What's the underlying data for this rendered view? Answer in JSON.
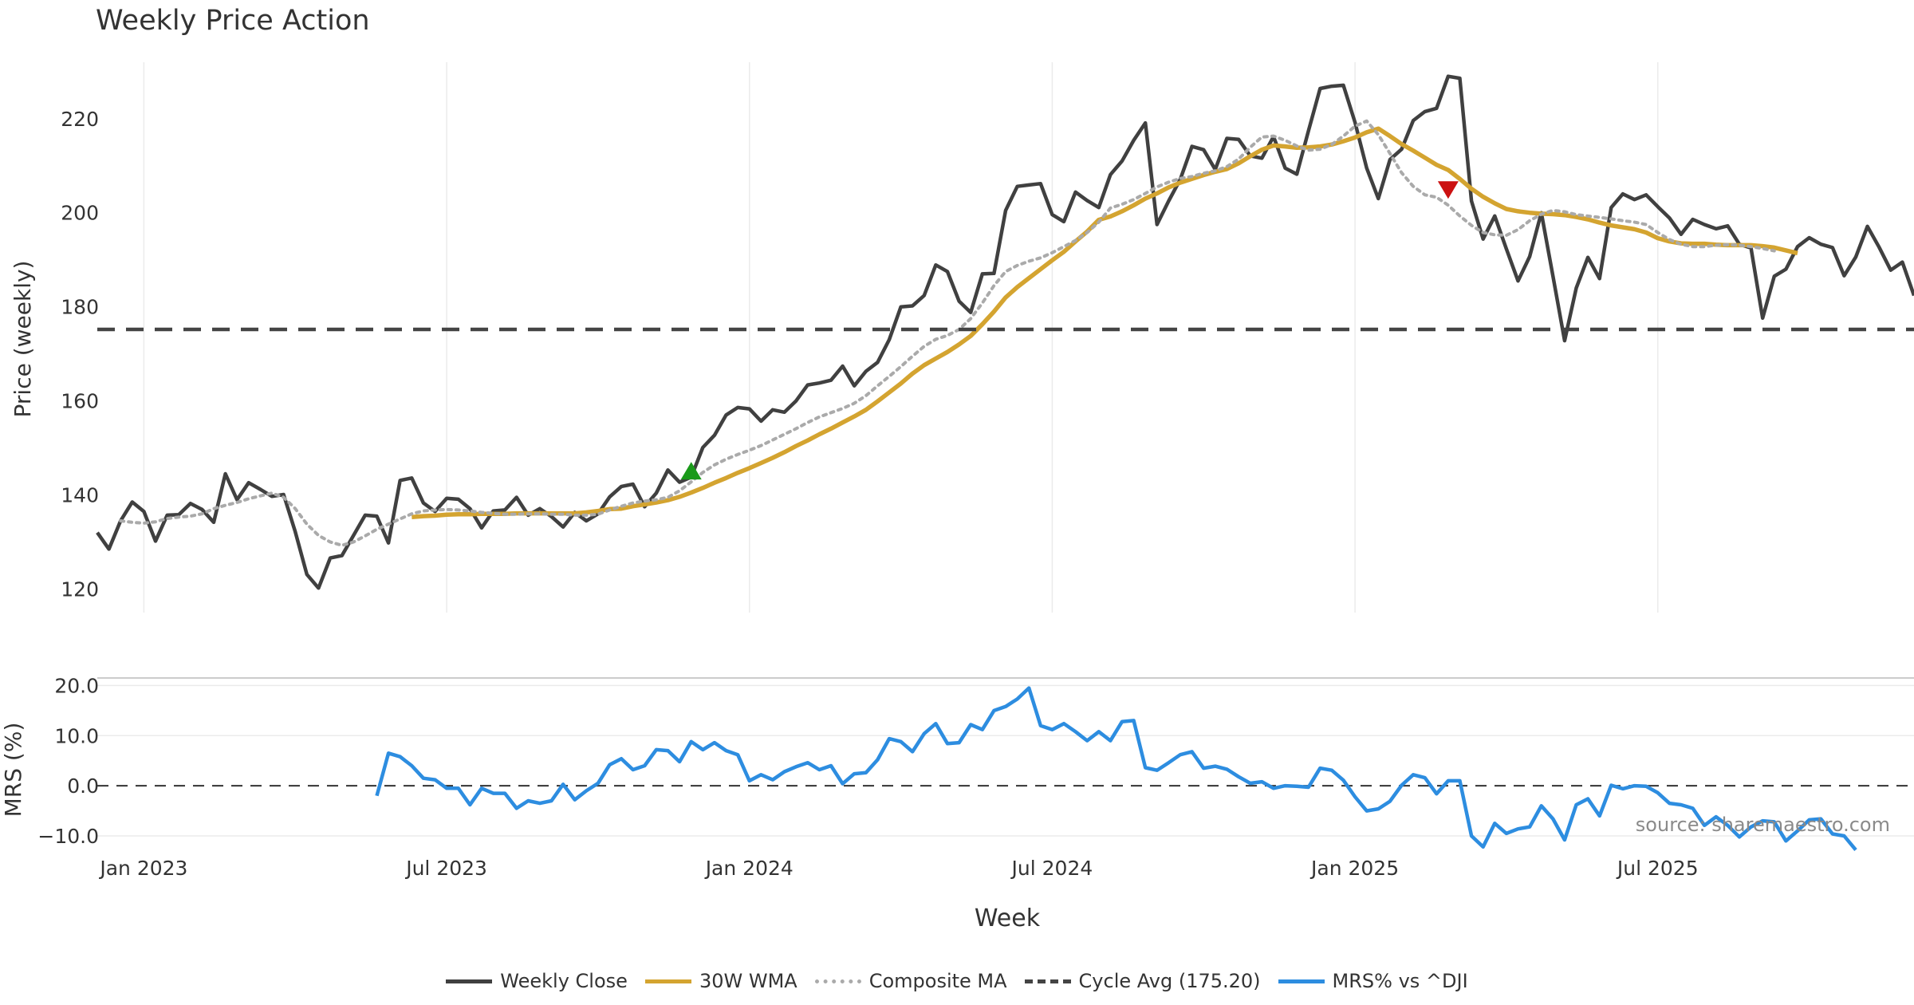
{
  "chart_data": {
    "type": "line",
    "title": "Weekly Price Action",
    "source_note": "source: sharemaestro.com",
    "x_axis": {
      "label": "Week",
      "ticks": [
        "Jan 2023",
        "Jul 2023",
        "Jan 2024",
        "Jul 2024",
        "Jan 2025",
        "Jul 2025"
      ],
      "range_weeks": [
        0,
        156
      ]
    },
    "price_panel": {
      "ylabel": "Price (weekly)",
      "ylim": [
        115,
        232
      ],
      "yticks": [
        120,
        140,
        160,
        180,
        200,
        220
      ],
      "grid": "vertical",
      "series": [
        {
          "name": "Weekly Close",
          "color": "#404040",
          "style": "solid",
          "start_week": 0,
          "values": [
            132,
            128.5,
            134.5,
            138.5,
            136.5,
            130.2,
            135.7,
            135.8,
            138.2,
            136.9,
            134.2,
            144.5,
            139,
            142.6,
            141.2,
            139.7,
            140.1,
            132.2,
            123.1,
            120.2,
            126.6,
            127.1,
            131.4,
            135.7,
            135.5,
            129.8,
            143.1,
            143.6,
            138.3,
            136.5,
            139.3,
            139.1,
            137.1,
            133,
            136.6,
            136.8,
            139.5,
            135.7,
            137.1,
            135.4,
            133.2,
            136.3,
            134.5,
            136,
            139.6,
            141.8,
            142.3,
            137.5,
            140.4,
            145.3,
            142.7,
            143.8,
            150.1,
            152.7,
            157,
            158.6,
            158.3,
            155.7,
            158.1,
            157.6,
            160,
            163.4,
            163.8,
            164.4,
            167.4,
            163.2,
            166.3,
            168.2,
            173,
            180,
            180.2,
            182.4,
            188.9,
            187.5,
            181.2,
            178.8,
            187,
            187.1,
            200.5,
            205.6,
            205.9,
            206.2,
            199.6,
            198.1,
            204.4,
            202.6,
            201.1,
            208.1,
            211,
            215.4,
            219.1,
            197.5,
            202.5,
            207.1,
            214.1,
            213.4,
            209.2,
            215.8,
            215.6,
            212.1,
            211.6,
            216.2,
            209.5,
            208.2,
            217.4,
            226.4,
            226.9,
            227.1,
            219.2,
            209.5,
            203,
            211.3,
            213.5,
            219.6,
            221.5,
            222.2,
            229,
            228.6,
            202.5,
            194.4,
            199.3,
            192.3,
            185.5,
            190.7,
            200,
            186.5,
            172.8,
            184,
            190.5,
            186,
            201.1,
            204,
            202.8,
            203.8,
            201.3,
            198.9,
            195.4,
            198.6,
            197.5,
            196.6,
            197.2,
            193.3,
            192.5,
            177.6,
            186.5,
            188,
            192.8,
            194.7,
            193.3,
            192.6,
            186.6,
            190.6,
            197.1,
            192.7,
            187.8,
            189.5,
            182.4
          ]
        },
        {
          "name": "30W WMA",
          "color": "#d4a430",
          "style": "solid",
          "start_week": 27,
          "values": [
            135.3,
            135.5,
            135.6,
            135.8,
            135.9,
            135.9,
            136,
            136,
            136,
            136.1,
            136.1,
            136.1,
            136.1,
            136.1,
            136.1,
            136.3,
            136.6,
            137,
            137.1,
            137.6,
            138,
            138.4,
            138.9,
            139.6,
            140.5,
            141.5,
            142.6,
            143.6,
            144.7,
            145.7,
            146.8,
            147.9,
            149.1,
            150.4,
            151.6,
            152.9,
            154.1,
            155.4,
            156.7,
            158.1,
            159.9,
            161.8,
            163.7,
            165.8,
            167.6,
            169,
            170.4,
            172,
            173.8,
            176.3,
            179,
            182,
            184.2,
            186.1,
            188,
            189.9,
            191.7,
            193.9,
            196,
            198.5,
            199.2,
            200.3,
            201.6,
            203,
            204.1,
            205.4,
            206.4,
            207.2,
            208,
            208.7,
            209.3,
            210.5,
            212,
            213.4,
            214.3,
            214.1,
            213.8,
            213.9,
            214.1,
            214.5,
            215.2,
            216,
            217.1,
            217.9,
            216.3,
            214.6,
            213.2,
            211.7,
            210.2,
            209.1,
            207.2,
            205.1,
            203.4,
            202,
            200.8,
            200.3,
            200,
            199.8,
            199.7,
            199.5,
            199.1,
            198.6,
            197.9,
            197.3,
            196.9,
            196.5,
            195.8,
            194.6,
            193.9,
            193.5,
            193.4,
            193.4,
            193.2,
            193.1,
            193.1,
            193.1,
            192.9,
            192.6,
            192,
            191.4
          ]
        },
        {
          "name": "Composite MA",
          "color": "#aaaaaa",
          "style": "dotted",
          "start_week": 2,
          "values": [
            134.5,
            134.2,
            134,
            134.3,
            135,
            135.3,
            135.5,
            136,
            137.1,
            137.8,
            138.4,
            139.2,
            139.8,
            140.4,
            139.5,
            137.1,
            133.8,
            131.4,
            130,
            129.3,
            130,
            131.3,
            132.7,
            133.8,
            134.9,
            136,
            136.6,
            136.8,
            136.9,
            136.8,
            136.6,
            136.3,
            136.1,
            135.9,
            135.9,
            136,
            136,
            135.9,
            135.9,
            135.7,
            135.7,
            135.9,
            136.8,
            137.6,
            138.3,
            138.7,
            139,
            139.5,
            140.9,
            142.8,
            144.8,
            146.4,
            147.6,
            148.6,
            149.5,
            150.5,
            151.7,
            152.9,
            154.1,
            155.4,
            156.6,
            157.5,
            158.4,
            159.5,
            161.1,
            163.2,
            165.2,
            167.3,
            169.5,
            171.6,
            173.1,
            173.9,
            175.2,
            177.5,
            180.8,
            184.5,
            187.5,
            188.8,
            189.7,
            190.4,
            191.5,
            192.8,
            194.1,
            195.8,
            198,
            201,
            201.8,
            202.8,
            204.1,
            205.5,
            206.5,
            207.3,
            207.7,
            208.4,
            208.9,
            209.8,
            211.4,
            213.9,
            216.1,
            216.3,
            215.4,
            214.2,
            213.3,
            213.5,
            214.5,
            216.3,
            218.4,
            219.5,
            216.6,
            212.6,
            208.5,
            205.6,
            203.8,
            203.3,
            201.6,
            199.3,
            197.3,
            195.8,
            195.3,
            195.2,
            196.4,
            198.3,
            199.7,
            200.5,
            200.2,
            199.6,
            199.3,
            199,
            198.7,
            198.3,
            198,
            197.5,
            195.8,
            194.3,
            193.3,
            192.8,
            192.8,
            193.1,
            193.2,
            193.1,
            192.8,
            192.4,
            191.9
          ]
        },
        {
          "name": "Cycle Avg (175.20)",
          "color": "#444444",
          "style": "dashed",
          "constant": 175.2
        }
      ],
      "annotations": [
        {
          "type": "buy-signal",
          "marker": "triangle-up",
          "color": "#1a9a1a",
          "week": 51,
          "value": 145
        },
        {
          "type": "sell-signal",
          "marker": "triangle-down",
          "color": "#cc1111",
          "week": 116,
          "value": 205
        }
      ]
    },
    "mrs_panel": {
      "ylabel": "MRS (%)",
      "ylim": [
        -13.5,
        21.5
      ],
      "yticks": [
        "20.0",
        "10.0",
        "0.0",
        "−10.0"
      ],
      "ytick_values": [
        20,
        10,
        0,
        -10
      ],
      "zero_line": "dashed",
      "series": [
        {
          "name": "MRS% vs ^DJI",
          "color": "#2d8de0",
          "style": "solid",
          "start_week": 24,
          "values": [
            -2,
            6.5,
            5.8,
            4,
            1.5,
            1.2,
            -0.5,
            -0.5,
            -3.8,
            -0.5,
            -1.5,
            -1.5,
            -4.5,
            -3,
            -3.5,
            -3,
            0.3,
            -2.8,
            -1,
            0.5,
            4.2,
            5.4,
            3.2,
            4,
            7.2,
            7,
            4.8,
            8.8,
            7.2,
            8.6,
            7,
            6.2,
            1,
            2.2,
            1.2,
            2.8,
            3.8,
            4.6,
            3.2,
            4,
            0.4,
            2.4,
            2.6,
            5.2,
            9.4,
            8.8,
            6.8,
            10.4,
            12.4,
            8.4,
            8.6,
            12.2,
            11.2,
            15,
            15.8,
            17.3,
            19.5,
            12,
            11.2,
            12.4,
            10.8,
            9,
            10.8,
            9,
            12.8,
            13,
            3.6,
            3.1,
            4.6,
            6.2,
            6.8,
            3.5,
            3.9,
            3.3,
            1.8,
            0.5,
            0.8,
            -0.5,
            0,
            -0.1,
            -0.3,
            3.5,
            3.1,
            1.1,
            -2.2,
            -5,
            -4.6,
            -3.1,
            0.1,
            2.2,
            1.6,
            -1.6,
            1,
            1,
            -10,
            -12.2,
            -7.5,
            -9.5,
            -8.6,
            -8.2,
            -4,
            -6.6,
            -10.8,
            -3.8,
            -2.6,
            -6,
            0.1,
            -0.6,
            0,
            -0.1,
            -1.4,
            -3.5,
            -3.8,
            -4.5,
            -7.9,
            -6.2,
            -7.9,
            -10.2,
            -8.2,
            -7,
            -7.2,
            -11,
            -9,
            -6.8,
            -6.6,
            -9.6,
            -10,
            -12.8
          ]
        }
      ]
    },
    "legend": {
      "position": "bottom-center",
      "entries": [
        {
          "label": "Weekly Close",
          "color": "#404040",
          "style": "solid"
        },
        {
          "label": "30W WMA",
          "color": "#d4a430",
          "style": "solid"
        },
        {
          "label": "Composite MA",
          "color": "#aaaaaa",
          "style": "dotted"
        },
        {
          "label": "Cycle Avg (175.20)",
          "color": "#444444",
          "style": "dashed"
        },
        {
          "label": "MRS% vs ^DJI",
          "color": "#2d8de0",
          "style": "solid"
        }
      ]
    }
  }
}
